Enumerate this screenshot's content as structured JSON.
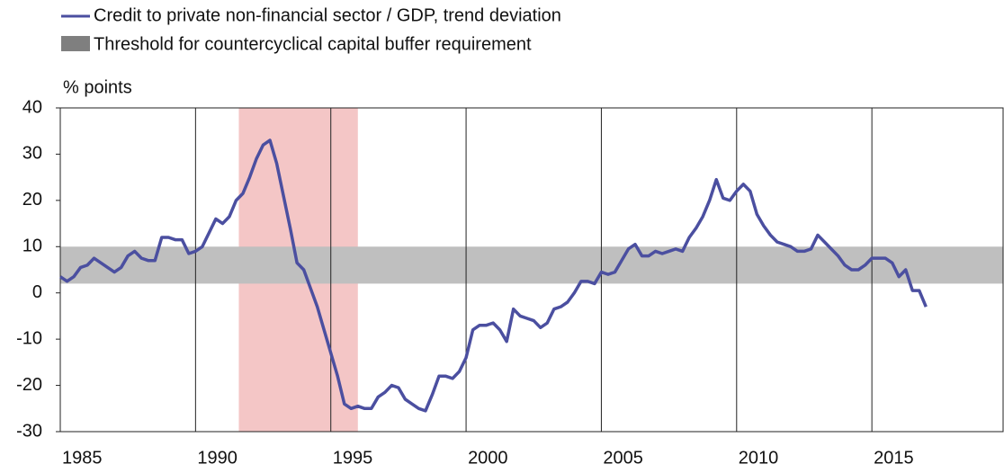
{
  "chart_data": {
    "type": "line",
    "y_axis_label": "% points",
    "x": [
      1985,
      1985.25,
      1985.5,
      1985.75,
      1986,
      1986.25,
      1986.5,
      1986.75,
      1987,
      1987.25,
      1987.5,
      1987.75,
      1988,
      1988.25,
      1988.5,
      1988.75,
      1989,
      1989.25,
      1989.5,
      1989.75,
      1990,
      1990.25,
      1990.5,
      1990.75,
      1991,
      1991.25,
      1991.5,
      1991.75,
      1992,
      1992.25,
      1992.5,
      1992.75,
      1993,
      1993.25,
      1993.5,
      1993.75,
      1994,
      1994.25,
      1994.5,
      1994.75,
      1995,
      1995.25,
      1995.5,
      1995.75,
      1996,
      1996.25,
      1996.5,
      1996.75,
      1997,
      1997.25,
      1997.5,
      1997.75,
      1998,
      1998.25,
      1998.5,
      1998.75,
      1999,
      1999.25,
      1999.5,
      1999.75,
      2000,
      2000.25,
      2000.5,
      2000.75,
      2001,
      2001.25,
      2001.5,
      2001.75,
      2002,
      2002.25,
      2002.5,
      2002.75,
      2003,
      2003.25,
      2003.5,
      2003.75,
      2004,
      2004.25,
      2004.5,
      2004.75,
      2005,
      2005.25,
      2005.5,
      2005.75,
      2006,
      2006.25,
      2006.5,
      2006.75,
      2007,
      2007.25,
      2007.5,
      2007.75,
      2008,
      2008.25,
      2008.5,
      2008.75,
      2009,
      2009.25,
      2009.5,
      2009.75,
      2010,
      2010.25,
      2010.5,
      2010.75,
      2011,
      2011.25,
      2011.5,
      2011.75,
      2012,
      2012.25,
      2012.5,
      2012.75,
      2013,
      2013.25,
      2013.5,
      2013.75,
      2014,
      2014.25,
      2014.5,
      2014.75,
      2015,
      2015.25,
      2015.5,
      2015.75,
      2016,
      2016.25,
      2016.5,
      2016.75,
      2017
    ],
    "series": [
      {
        "name": "Credit to private non-financial sector / GDP, trend deviation",
        "color": "#4b4fa0",
        "values": [
          3.5,
          2.5,
          3.5,
          5.5,
          6,
          7.5,
          6.5,
          5.5,
          4.5,
          5.5,
          8,
          9,
          7.5,
          7,
          7,
          12,
          12,
          11.5,
          11.5,
          8.5,
          9,
          10,
          13,
          16,
          15,
          16.5,
          20,
          21.5,
          25,
          29,
          32,
          33,
          28,
          21,
          14,
          6.5,
          5,
          1,
          -3,
          -8,
          -13,
          -18,
          -24,
          -25,
          -24.5,
          -25,
          -25,
          -22.5,
          -21.5,
          -20,
          -20.5,
          -23,
          -24,
          -25,
          -25.5,
          -22,
          -18,
          -18,
          -18.5,
          -17,
          -14,
          -8,
          -7,
          -7,
          -6.5,
          -8,
          -10.5,
          -3.5,
          -5,
          -5.5,
          -6,
          -7.5,
          -6.5,
          -3.5,
          -3,
          -2,
          0,
          2.5,
          2.5,
          2,
          4.5,
          4,
          4.5,
          7,
          9.5,
          10.5,
          8,
          8,
          9,
          8.5,
          9,
          9.5,
          9,
          12,
          14,
          16.5,
          20,
          24.5,
          20.5,
          20,
          22,
          23.5,
          22,
          17,
          14.5,
          12.5,
          11,
          10.5,
          10,
          9,
          9,
          9.5,
          12.5,
          11,
          9.5,
          8,
          6,
          5,
          5,
          6,
          7.5,
          7.5,
          7.5,
          6.5,
          3.5,
          5,
          0.5,
          0.5,
          -3
        ]
      }
    ],
    "bands": [
      {
        "name": "Threshold for countercyclical capital buffer requirement",
        "color": "#bfbfbf",
        "range": [
          2,
          10
        ]
      }
    ],
    "shaded_periods": [
      {
        "color": "#f4c6c6",
        "range": [
          1991.6,
          1996
        ]
      }
    ],
    "xlim": [
      1985,
      2019.85
    ],
    "xticks": [
      1985,
      1990,
      1995,
      2000,
      2005,
      2010,
      2015
    ],
    "ylim": [
      -30,
      40
    ],
    "yticks": [
      -30,
      -20,
      -10,
      0,
      10,
      20,
      30,
      40
    ],
    "grid": "x"
  }
}
